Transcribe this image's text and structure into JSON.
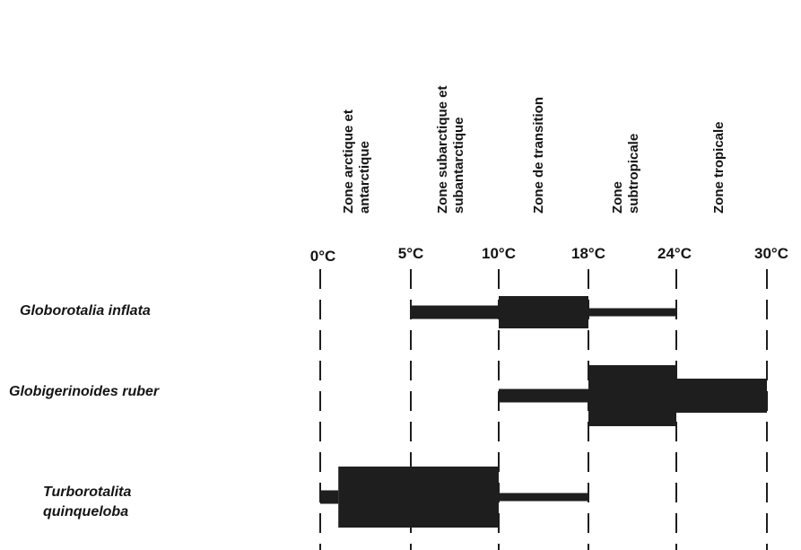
{
  "zones": [
    {
      "label": "Zone arctique et\nantarctique"
    },
    {
      "label": "Zone subarctique et\nsubantarctique"
    },
    {
      "label": "Zone de transition"
    },
    {
      "label": "Zone\nsubtropicale"
    },
    {
      "label": "Zone tropicale"
    }
  ],
  "temperatures": [
    {
      "value": 0,
      "label": "0°C"
    },
    {
      "value": 5,
      "label": "5°C"
    },
    {
      "value": 10,
      "label": "10°C"
    },
    {
      "value": 18,
      "label": "18°C"
    },
    {
      "value": 24,
      "label": "24°C"
    },
    {
      "value": 30,
      "label": "30°C"
    }
  ],
  "species": [
    {
      "name": "Globorotalia inflata",
      "ranges": [
        {
          "from": 5,
          "to": 10,
          "abundance": "low"
        },
        {
          "from": 10,
          "to": 18,
          "abundance": "high"
        },
        {
          "from": 18,
          "to": 24,
          "abundance": "trace"
        }
      ]
    },
    {
      "name": "Globigerinoides ruber",
      "ranges": [
        {
          "from": 10,
          "to": 18,
          "abundance": "low"
        },
        {
          "from": 18,
          "to": 24,
          "abundance": "very-high"
        },
        {
          "from": 24,
          "to": 30,
          "abundance": "medium"
        }
      ]
    },
    {
      "name": "Turborotalita\nquinqueloba",
      "ranges": [
        {
          "from": 0,
          "to": 1,
          "abundance": "low"
        },
        {
          "from": 1,
          "to": 10,
          "abundance": "very-high"
        },
        {
          "from": 10,
          "to": 18,
          "abundance": "trace"
        }
      ]
    }
  ],
  "colors": {
    "bar": "#1e1e1e",
    "line": "#1e1e1e"
  }
}
